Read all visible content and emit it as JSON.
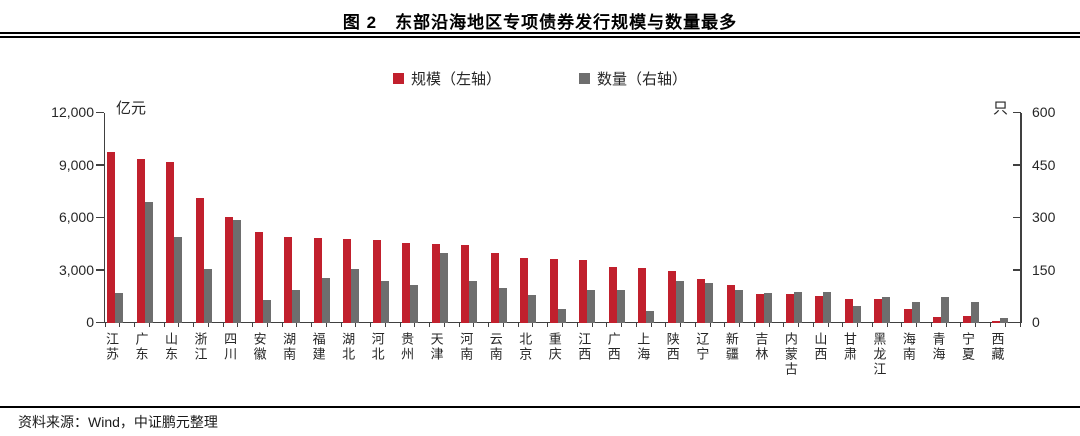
{
  "title": "图 2　东部沿海地区专项债券发行规模与数量最多",
  "source": "资料来源：Wind，中证鹏元整理",
  "legend": {
    "scale_label": "规模（左轴）",
    "quantity_label": "数量（右轴）"
  },
  "colors": {
    "scale": "#C1202D",
    "quantity": "#6E6E6E",
    "axis": "#404040",
    "rule": "#000000"
  },
  "chart_data": {
    "type": "bar",
    "title": "东部沿海地区专项债券发行规模与数量最多",
    "grid": false,
    "legend_position": "top",
    "categories": [
      "江苏",
      "广东",
      "山东",
      "浙江",
      "四川",
      "安徽",
      "湖南",
      "福建",
      "湖北",
      "河北",
      "贵州",
      "天津",
      "河南",
      "云南",
      "北京",
      "重庆",
      "江西",
      "广西",
      "上海",
      "陕西",
      "辽宁",
      "新疆",
      "吉林",
      "内蒙古",
      "山西",
      "甘肃",
      "黑龙江",
      "海南",
      "青海",
      "宁夏",
      "西藏"
    ],
    "series": [
      {
        "name": "规模（左轴）",
        "axis": "left",
        "unit": "亿元",
        "color": "#C1202D",
        "values": [
          9800,
          9400,
          9200,
          7150,
          6050,
          5200,
          4900,
          4850,
          4800,
          4750,
          4550,
          4500,
          4450,
          4000,
          3700,
          3650,
          3600,
          3200,
          3150,
          3000,
          2500,
          2200,
          1650,
          1650,
          1550,
          1400,
          1350,
          800,
          350,
          400,
          90
        ]
      },
      {
        "name": "数量（右轴）",
        "axis": "right",
        "unit": "只",
        "color": "#6E6E6E",
        "values": [
          85,
          345,
          245,
          155,
          295,
          65,
          95,
          130,
          155,
          120,
          110,
          200,
          120,
          100,
          80,
          40,
          95,
          95,
          35,
          120,
          115,
          95,
          85,
          90,
          90,
          50,
          75,
          60,
          75,
          60,
          15
        ]
      }
    ],
    "left_axis": {
      "label": "亿元",
      "min": 0,
      "max": 12000,
      "ticks": [
        "0",
        "3,000",
        "6,000",
        "9,000",
        "12,000"
      ]
    },
    "right_axis": {
      "label": "只",
      "min": 0,
      "max": 600,
      "ticks": [
        "0",
        "150",
        "300",
        "450",
        "600"
      ]
    }
  }
}
